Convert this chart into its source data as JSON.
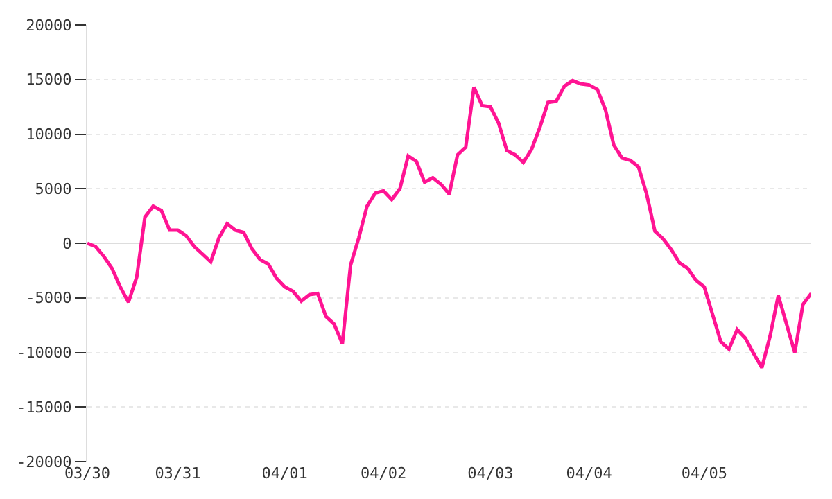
{
  "chart_data": {
    "type": "line",
    "categories": [
      "03/30",
      null,
      null,
      null,
      null,
      null,
      null,
      null,
      null,
      null,
      null,
      "03/31",
      null,
      null,
      null,
      null,
      null,
      null,
      null,
      null,
      null,
      null,
      null,
      null,
      "04/01",
      null,
      null,
      null,
      null,
      null,
      null,
      null,
      null,
      null,
      null,
      null,
      "04/02",
      null,
      null,
      null,
      null,
      null,
      null,
      null,
      null,
      null,
      null,
      null,
      null,
      "04/03",
      null,
      null,
      null,
      null,
      null,
      null,
      null,
      null,
      null,
      null,
      null,
      "04/04",
      null,
      null,
      null,
      null,
      null,
      null,
      null,
      null,
      null,
      null,
      null,
      null,
      null,
      "04/05",
      null,
      null,
      null,
      null,
      null,
      null,
      null,
      null,
      null,
      null,
      null,
      null,
      null
    ],
    "series": [
      {
        "color": "#ff1493",
        "values": [
          0,
          -300,
          -1200,
          -2300,
          -4000,
          -5400,
          -3100,
          2400,
          3400,
          3000,
          1200,
          1200,
          700,
          -300,
          -1000,
          -1700,
          500,
          1800,
          1200,
          1000,
          -500,
          -1500,
          -1900,
          -3200,
          -4000,
          -4400,
          -5300,
          -4700,
          -4600,
          -6700,
          -7400,
          -9200,
          -2000,
          500,
          3400,
          4600,
          4800,
          4000,
          5000,
          8000,
          7500,
          5600,
          6000,
          5400,
          4500,
          8100,
          8800,
          14300,
          12600,
          12500,
          11000,
          8500,
          8100,
          7400,
          8600,
          10600,
          12900,
          13000,
          14400,
          14900,
          14600,
          14500,
          14100,
          12200,
          9000,
          7800,
          7600,
          7000,
          4500,
          1100,
          400,
          -600,
          -1800,
          -2300,
          -3400,
          -4000,
          -6500,
          -9000,
          -9700,
          -7900,
          -8700,
          -10100,
          -11400,
          -8500,
          -4800,
          -7400,
          -10000,
          -5600,
          -4600
        ]
      }
    ],
    "ylim": [
      -20000,
      20000
    ],
    "yticks": [
      -20000,
      -15000,
      -10000,
      -5000,
      0,
      5000,
      10000,
      15000,
      20000
    ],
    "grid": "y",
    "marker": "none",
    "line_style": "solid"
  }
}
